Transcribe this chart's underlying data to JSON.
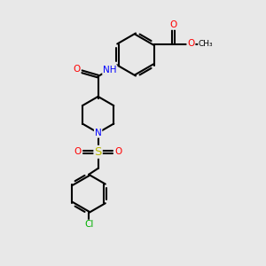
{
  "background_color": "#e8e8e8",
  "figsize": [
    3.0,
    3.0
  ],
  "dpi": 100,
  "bond_color": "#000000",
  "bond_width": 1.5,
  "atom_colors": {
    "C": "#000000",
    "N": "#0000ff",
    "O": "#ff0000",
    "S": "#b8b800",
    "Cl": "#00b000",
    "H": "#888888"
  },
  "font_size": 7.5
}
